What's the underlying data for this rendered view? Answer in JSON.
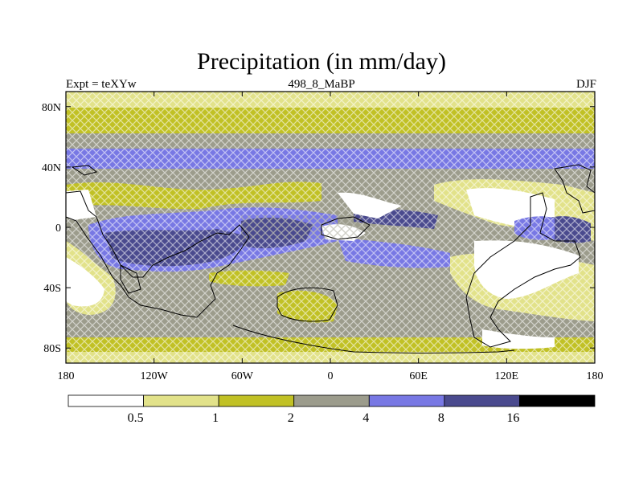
{
  "title": "Precipitation (in mm/day)",
  "subtitle_left": "Expt = teXYw",
  "subtitle_center": "498_8_MaBP",
  "subtitle_right": "DJF",
  "lat_labels": [
    "80N",
    "40N",
    "0",
    "40S",
    "80S"
  ],
  "lon_labels": [
    "180",
    "120W",
    "60W",
    "0",
    "60E",
    "120E",
    "180"
  ],
  "colorbar": {
    "colors": [
      "#ffffff",
      "#e2e28a",
      "#c1c125",
      "#9c9c8c",
      "#7878e4",
      "#4a4a8e",
      "#000000"
    ],
    "labels": [
      "0.5",
      "1",
      "2",
      "4",
      "8",
      "16"
    ]
  },
  "colors": {
    "white": "#ffffff",
    "pale_yellow": "#e2e28a",
    "olive": "#c1c125",
    "gray": "#9c9c8c",
    "periwinkle": "#7878e4",
    "navy": "#4a4a8e"
  }
}
